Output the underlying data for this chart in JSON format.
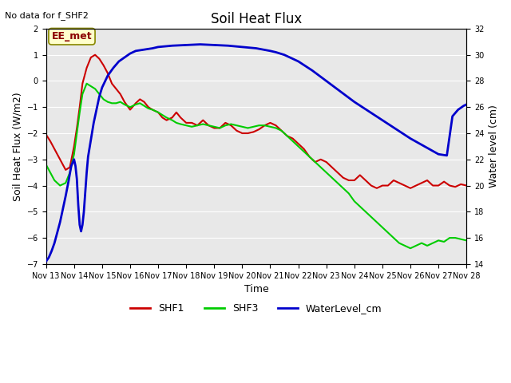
{
  "title": "Soil Heat Flux",
  "no_data_text": "No data for f_SHF2",
  "ylabel_left": "Soil Heat Flux (W/m2)",
  "ylabel_right": "Water level (cm)",
  "xlabel": "Time",
  "station_label": "EE_met",
  "ylim_left": [
    -7.0,
    2.0
  ],
  "ylim_right": [
    14,
    32
  ],
  "background_color": "#ffffff",
  "plot_bg_color": "#e8e8e8",
  "grid_color": "#ffffff",
  "xtick_labels": [
    "Nov 13",
    "Nov 14",
    "Nov 15",
    "Nov 16",
    "Nov 17",
    "Nov 18",
    "Nov 19",
    "Nov 20",
    "Nov 21",
    "Nov 22",
    "Nov 23",
    "Nov 24",
    "Nov 25",
    "Nov 26",
    "Nov 27",
    "Nov 28"
  ],
  "shf1_color": "#cc0000",
  "shf3_color": "#00cc00",
  "water_color": "#0000cc",
  "title_fontsize": 12,
  "label_fontsize": 9,
  "tick_fontsize": 7,
  "legend_fontsize": 9,
  "shf1_x": [
    0.0,
    0.15,
    0.3,
    0.5,
    0.7,
    0.85,
    1.0,
    1.1,
    1.2,
    1.3,
    1.45,
    1.6,
    1.75,
    1.9,
    2.05,
    2.2,
    2.35,
    2.5,
    2.65,
    2.8,
    3.0,
    3.2,
    3.35,
    3.5,
    3.65,
    3.8,
    4.0,
    4.15,
    4.3,
    4.5,
    4.65,
    4.8,
    5.0,
    5.2,
    5.4,
    5.6,
    5.8,
    6.0,
    6.2,
    6.4,
    6.6,
    6.8,
    7.0,
    7.2,
    7.4,
    7.6,
    7.8,
    8.0,
    8.2,
    8.4,
    8.6,
    8.8,
    9.0,
    9.2,
    9.4,
    9.6,
    9.8,
    10.0,
    10.2,
    10.4,
    10.6,
    10.8,
    11.0,
    11.2,
    11.4,
    11.6,
    11.8,
    12.0,
    12.2,
    12.4,
    12.6,
    12.8,
    13.0,
    13.2,
    13.4,
    13.6,
    13.8,
    14.0,
    14.2,
    14.4,
    14.6,
    14.8,
    15.0
  ],
  "shf1_y": [
    -2.05,
    -2.3,
    -2.6,
    -3.0,
    -3.4,
    -3.3,
    -2.5,
    -1.8,
    -1.0,
    -0.1,
    0.5,
    0.9,
    1.0,
    0.85,
    0.6,
    0.3,
    -0.1,
    -0.3,
    -0.5,
    -0.8,
    -1.1,
    -0.85,
    -0.7,
    -0.8,
    -1.0,
    -1.1,
    -1.2,
    -1.4,
    -1.5,
    -1.4,
    -1.2,
    -1.4,
    -1.6,
    -1.6,
    -1.7,
    -1.5,
    -1.7,
    -1.8,
    -1.8,
    -1.6,
    -1.7,
    -1.9,
    -2.0,
    -2.0,
    -1.95,
    -1.85,
    -1.7,
    -1.6,
    -1.7,
    -1.9,
    -2.1,
    -2.2,
    -2.4,
    -2.6,
    -2.9,
    -3.1,
    -3.0,
    -3.1,
    -3.3,
    -3.5,
    -3.7,
    -3.8,
    -3.8,
    -3.6,
    -3.8,
    -4.0,
    -4.1,
    -4.0,
    -4.0,
    -3.8,
    -3.9,
    -4.0,
    -4.1,
    -4.0,
    -3.9,
    -3.8,
    -4.0,
    -4.0,
    -3.85,
    -4.0,
    -4.05,
    -3.95,
    -4.0
  ],
  "shf3_x": [
    0.0,
    0.15,
    0.3,
    0.5,
    0.7,
    0.85,
    1.0,
    1.1,
    1.2,
    1.3,
    1.45,
    1.6,
    1.75,
    1.9,
    2.05,
    2.2,
    2.35,
    2.5,
    2.65,
    2.8,
    3.0,
    3.2,
    3.35,
    3.5,
    3.65,
    3.8,
    4.0,
    4.15,
    4.3,
    4.5,
    4.65,
    4.8,
    5.0,
    5.2,
    5.4,
    5.6,
    5.8,
    6.0,
    6.2,
    6.4,
    6.6,
    6.8,
    7.0,
    7.2,
    7.4,
    7.6,
    7.8,
    8.0,
    8.2,
    8.4,
    8.6,
    8.8,
    9.0,
    9.2,
    9.4,
    9.6,
    9.8,
    10.0,
    10.2,
    10.4,
    10.6,
    10.8,
    11.0,
    11.2,
    11.4,
    11.6,
    11.8,
    12.0,
    12.2,
    12.4,
    12.6,
    12.8,
    13.0,
    13.2,
    13.4,
    13.6,
    13.8,
    14.0,
    14.2,
    14.4,
    14.6,
    14.8,
    15.0
  ],
  "shf3_y": [
    -3.2,
    -3.5,
    -3.8,
    -4.0,
    -3.9,
    -3.5,
    -2.8,
    -2.0,
    -1.2,
    -0.5,
    -0.1,
    -0.2,
    -0.3,
    -0.5,
    -0.7,
    -0.8,
    -0.85,
    -0.85,
    -0.8,
    -0.9,
    -1.0,
    -0.9,
    -0.85,
    -0.95,
    -1.05,
    -1.1,
    -1.2,
    -1.3,
    -1.4,
    -1.5,
    -1.6,
    -1.65,
    -1.7,
    -1.75,
    -1.7,
    -1.65,
    -1.7,
    -1.75,
    -1.8,
    -1.7,
    -1.65,
    -1.7,
    -1.75,
    -1.8,
    -1.75,
    -1.7,
    -1.7,
    -1.75,
    -1.8,
    -1.9,
    -2.1,
    -2.3,
    -2.5,
    -2.7,
    -2.9,
    -3.1,
    -3.3,
    -3.5,
    -3.7,
    -3.9,
    -4.1,
    -4.3,
    -4.6,
    -4.8,
    -5.0,
    -5.2,
    -5.4,
    -5.6,
    -5.8,
    -6.0,
    -6.2,
    -6.3,
    -6.4,
    -6.3,
    -6.2,
    -6.3,
    -6.2,
    -6.1,
    -6.15,
    -6.0,
    -6.0,
    -6.05,
    -6.1
  ],
  "water_x": [
    0.0,
    0.1,
    0.2,
    0.3,
    0.4,
    0.5,
    0.6,
    0.7,
    0.8,
    0.9,
    1.0,
    1.05,
    1.1,
    1.15,
    1.2,
    1.25,
    1.3,
    1.35,
    1.4,
    1.45,
    1.5,
    1.6,
    1.7,
    1.8,
    1.9,
    2.0,
    2.2,
    2.4,
    2.6,
    2.8,
    3.0,
    3.2,
    3.5,
    3.8,
    4.0,
    4.5,
    5.0,
    5.5,
    6.0,
    6.5,
    7.0,
    7.5,
    8.0,
    8.2,
    8.5,
    9.0,
    9.5,
    10.0,
    10.5,
    11.0,
    11.5,
    12.0,
    12.5,
    13.0,
    13.5,
    14.0,
    14.3,
    14.5,
    14.7,
    14.9,
    15.0
  ],
  "water_y": [
    14.2,
    14.5,
    15.0,
    15.6,
    16.4,
    17.2,
    18.2,
    19.2,
    20.3,
    21.5,
    22.0,
    21.5,
    20.5,
    18.5,
    17.0,
    16.5,
    17.0,
    18.0,
    19.5,
    21.0,
    22.2,
    23.5,
    24.8,
    25.8,
    26.8,
    27.5,
    28.4,
    29.0,
    29.5,
    29.8,
    30.1,
    30.3,
    30.4,
    30.5,
    30.6,
    30.7,
    30.75,
    30.8,
    30.75,
    30.7,
    30.6,
    30.5,
    30.3,
    30.2,
    30.0,
    29.5,
    28.8,
    28.0,
    27.2,
    26.4,
    25.7,
    25.0,
    24.3,
    23.6,
    23.0,
    22.4,
    22.3,
    25.3,
    25.8,
    26.1,
    26.2
  ]
}
